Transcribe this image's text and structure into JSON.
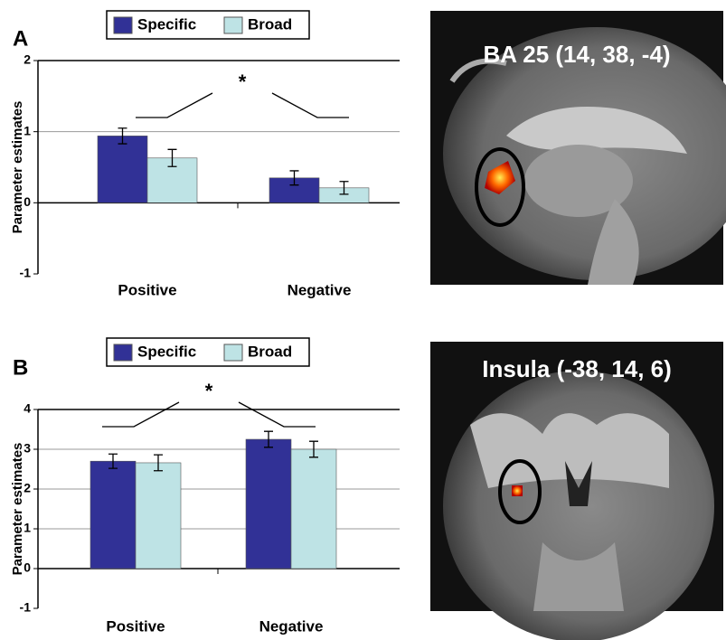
{
  "chart_data": [
    {
      "type": "bar",
      "panel_label": "A",
      "ylabel": "Parameter estimates",
      "categories": [
        "Positive",
        "Negative"
      ],
      "series": [
        {
          "name": "Specific",
          "color": "#313196",
          "values": [
            0.94,
            0.35
          ],
          "errors": [
            0.11,
            0.1
          ]
        },
        {
          "name": "Broad",
          "color": "#bee3e5",
          "values": [
            0.63,
            0.21
          ],
          "errors": [
            0.12,
            0.09
          ]
        }
      ],
      "ylim": [
        -1,
        2
      ],
      "yticks": [
        -1,
        0,
        1,
        2
      ],
      "grid": true,
      "annotation": "*",
      "image_title": "BA 25 (14, 38, -4)"
    },
    {
      "type": "bar",
      "panel_label": "B",
      "ylabel": "Parameter estimates",
      "categories": [
        "Positive",
        "Negative"
      ],
      "series": [
        {
          "name": "Specific",
          "color": "#313196",
          "values": [
            2.7,
            3.25
          ],
          "errors": [
            0.18,
            0.2
          ]
        },
        {
          "name": "Broad",
          "color": "#bee3e5",
          "values": [
            2.66,
            3.0
          ],
          "errors": [
            0.2,
            0.2
          ]
        }
      ],
      "ylim": [
        -1,
        4
      ],
      "yticks": [
        -1,
        0,
        1,
        2,
        3,
        4
      ],
      "grid": true,
      "annotation": "*",
      "image_title": "Insula (-38, 14, 6)"
    }
  ]
}
